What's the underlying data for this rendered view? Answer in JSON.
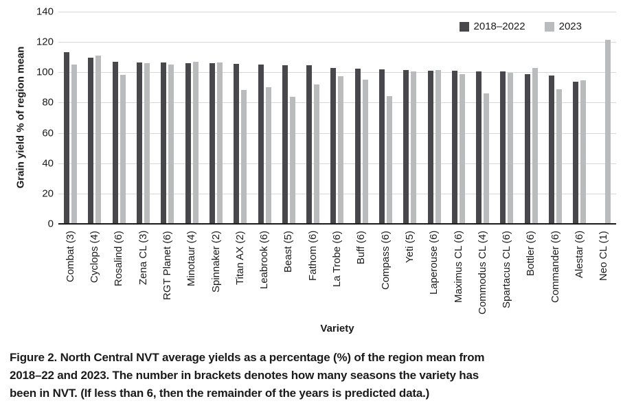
{
  "chart_data": {
    "type": "bar",
    "title": "",
    "xlabel": "Variety",
    "ylabel": "Grain yield % of region mean",
    "ylim": [
      0,
      140
    ],
    "grid": true,
    "legend_position": "top-right",
    "categories": [
      "Combat (3)",
      "Cyclops (4)",
      "Rosalind (6)",
      "Zena CL (3)",
      "RGT Planet (6)",
      "Minotaur (4)",
      "Spinnaker (2)",
      "Titan AX (2)",
      "Leabrook (6)",
      "Beast (5)",
      "Fathom (6)",
      "La Trobe (6)",
      "Buff (6)",
      "Compass (6)",
      "Yeti (5)",
      "Laperouse (6)",
      "Maximus CL (6)",
      "Commodus CL (4)",
      "Spartacus CL (6)",
      "Bottler (6)",
      "Commander (6)",
      "Alestar (6)",
      "Neo CL (1)"
    ],
    "series": [
      {
        "name": "2018–2022",
        "color": "#47474c",
        "values": [
          113.5,
          109.5,
          107,
          106.5,
          106.5,
          106,
          106,
          105.5,
          105,
          104.5,
          104.5,
          103,
          102.5,
          102,
          101.5,
          101,
          101,
          100.5,
          100.5,
          99,
          98,
          94,
          null
        ]
      },
      {
        "name": "2023",
        "color": "#b9bbbd",
        "values": [
          105,
          111,
          98.5,
          106,
          105,
          107,
          106.5,
          88.5,
          90,
          84,
          92,
          97.5,
          95,
          84.5,
          100.5,
          101.5,
          99,
          86,
          99.5,
          103,
          89,
          94.5,
          121.5
        ]
      }
    ]
  },
  "axes": {
    "y_ticks": [
      "0",
      "20",
      "40",
      "60",
      "80",
      "100",
      "120",
      "140"
    ],
    "gridline_color": "#d8d8d8",
    "axis_line_color": "#1a1a1a"
  },
  "caption": {
    "lines": [
      "Figure 2. North Central NVT average yields as a percentage (%) of the region mean from",
      "2018–22 and 2023. The number in brackets denotes how many seasons the variety has",
      "been in NVT. (If less than 6, then the remainder of the years is predicted data.)"
    ]
  }
}
